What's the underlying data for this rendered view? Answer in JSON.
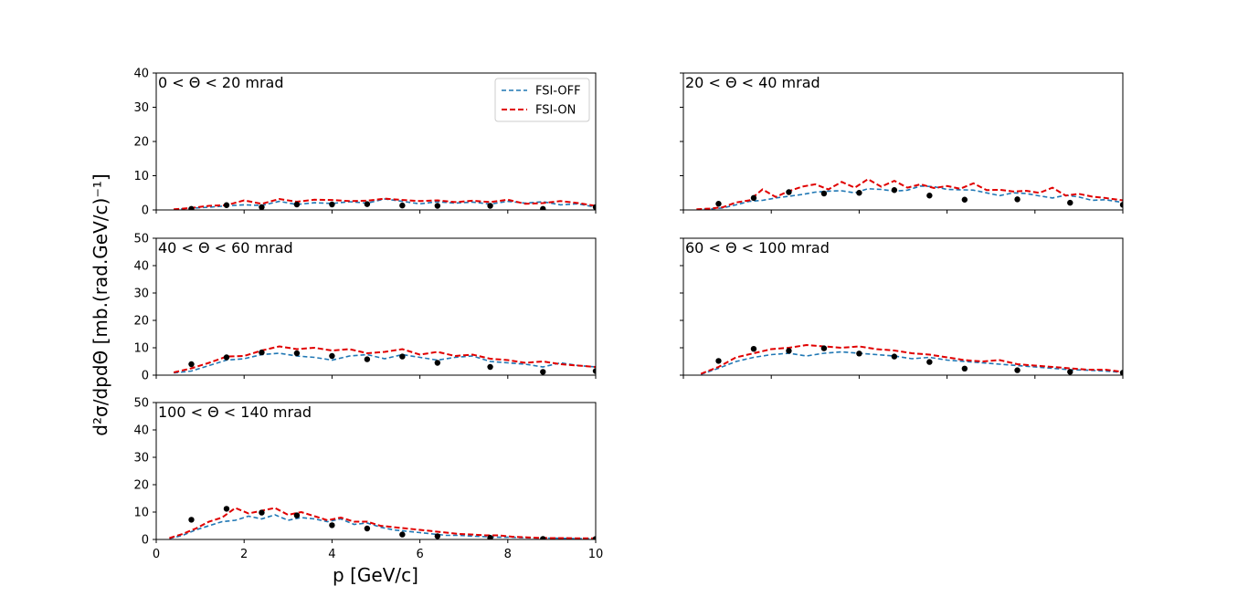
{
  "figure": {
    "ylabel": "d²σ/dpdΘ [mb.(rad.GeV/c)⁻¹]",
    "xlabel": "p [GeV/c]"
  },
  "colors": {
    "fsi_off": "#1f77b4",
    "fsi_on": "#e00000",
    "data": "#000000"
  },
  "legend": {
    "entries": [
      "FSI-OFF",
      "FSI-ON"
    ],
    "placement": "upper-right of first panel"
  },
  "chart_data": [
    {
      "type": "line",
      "title": "0 < Θ < 20 mrad",
      "xlim": [
        0,
        10
      ],
      "ylim": [
        0,
        40
      ],
      "yticks": [
        0,
        10,
        20,
        30,
        40
      ],
      "xticks": [
        0,
        2,
        4,
        6,
        8,
        10
      ],
      "series": [
        {
          "name": "FSI-OFF",
          "x": [
            0.4,
            0.8,
            1.2,
            1.6,
            2.0,
            2.4,
            2.8,
            3.2,
            3.6,
            4.0,
            4.4,
            4.8,
            5.2,
            5.6,
            6.0,
            6.4,
            6.8,
            7.2,
            7.6,
            8.0,
            8.4,
            8.8,
            9.2,
            9.6,
            10.0
          ],
          "values": [
            0.1,
            0.5,
            0.8,
            1.2,
            1.5,
            1.3,
            2.5,
            1.6,
            2.1,
            1.9,
            2.4,
            2.0,
            3.2,
            2.5,
            1.8,
            2.4,
            2.0,
            2.3,
            1.7,
            2.5,
            2.0,
            2.4,
            1.5,
            1.8,
            0.8
          ]
        },
        {
          "name": "FSI-ON",
          "x": [
            0.4,
            0.8,
            1.2,
            1.6,
            2.0,
            2.4,
            2.8,
            3.2,
            3.6,
            4.0,
            4.4,
            4.8,
            5.2,
            5.6,
            6.0,
            6.4,
            6.8,
            7.2,
            7.6,
            8.0,
            8.4,
            8.8,
            9.2,
            9.6,
            10.0
          ],
          "values": [
            0.2,
            0.6,
            1.2,
            1.4,
            2.8,
            1.8,
            3.2,
            2.4,
            3.0,
            2.9,
            2.6,
            2.7,
            3.3,
            2.9,
            2.6,
            2.8,
            2.3,
            2.7,
            2.3,
            3.0,
            1.8,
            2.0,
            2.6,
            2.0,
            1.2
          ]
        },
        {
          "name": "data",
          "type": "scatter",
          "x": [
            0.8,
            1.6,
            2.4,
            3.2,
            4.0,
            4.8,
            5.6,
            6.4,
            7.6,
            8.8,
            10.0
          ],
          "values": [
            0.3,
            1.4,
            0.8,
            1.6,
            1.6,
            1.7,
            1.3,
            1.2,
            1.2,
            0.3,
            0.8
          ]
        }
      ]
    },
    {
      "type": "line",
      "title": "20 < Θ < 40 mrad",
      "xlim": [
        0,
        10
      ],
      "ylim": [
        0,
        40
      ],
      "yticks": [
        0,
        10,
        20,
        30,
        40
      ],
      "series": [
        {
          "name": "FSI-OFF",
          "x": [
            0.3,
            0.6,
            0.9,
            1.2,
            1.5,
            1.8,
            2.1,
            2.4,
            2.7,
            3.0,
            3.3,
            3.6,
            3.9,
            4.2,
            4.5,
            4.8,
            5.1,
            5.4,
            5.7,
            6.0,
            6.3,
            6.6,
            6.9,
            7.2,
            7.5,
            7.8,
            8.1,
            8.4,
            8.7,
            9.0,
            9.3,
            9.6,
            10.0
          ],
          "values": [
            0.1,
            0.3,
            0.6,
            1.5,
            2.5,
            2.8,
            3.5,
            4.0,
            4.5,
            5.2,
            5.5,
            5.6,
            5.0,
            6.2,
            6.0,
            5.5,
            5.8,
            7.0,
            6.8,
            6.0,
            5.9,
            5.8,
            5.0,
            4.2,
            5.0,
            4.8,
            4.1,
            3.5,
            4.3,
            3.8,
            2.8,
            3.0,
            2.2
          ]
        },
        {
          "name": "FSI-ON",
          "x": [
            0.3,
            0.6,
            0.9,
            1.2,
            1.5,
            1.8,
            2.1,
            2.4,
            2.7,
            3.0,
            3.3,
            3.6,
            3.9,
            4.2,
            4.5,
            4.8,
            5.1,
            5.4,
            5.7,
            6.0,
            6.3,
            6.6,
            6.9,
            7.2,
            7.5,
            7.8,
            8.1,
            8.4,
            8.7,
            9.0,
            9.3,
            9.6,
            10.0
          ],
          "values": [
            0.2,
            0.4,
            0.8,
            2.2,
            2.8,
            6.0,
            3.8,
            5.5,
            6.8,
            7.5,
            6.0,
            8.2,
            6.5,
            9.0,
            6.8,
            8.5,
            6.5,
            7.5,
            6.4,
            7.0,
            6.2,
            7.8,
            5.8,
            5.9,
            5.4,
            5.6,
            5.0,
            6.5,
            4.2,
            4.7,
            3.9,
            3.5,
            2.8
          ]
        },
        {
          "name": "data",
          "type": "scatter",
          "x": [
            0.8,
            1.6,
            2.4,
            3.2,
            4.0,
            4.8,
            5.6,
            6.4,
            7.6,
            8.8,
            10.0
          ],
          "values": [
            1.8,
            3.5,
            5.2,
            4.8,
            5.0,
            5.8,
            4.2,
            3.0,
            3.1,
            2.1,
            1.5
          ]
        }
      ]
    },
    {
      "type": "line",
      "title": "40 < Θ < 60 mrad",
      "xlim": [
        0,
        10
      ],
      "ylim": [
        0,
        50
      ],
      "yticks": [
        0,
        10,
        20,
        30,
        40,
        50
      ],
      "series": [
        {
          "name": "FSI-OFF",
          "x": [
            0.4,
            0.8,
            1.2,
            1.6,
            2.0,
            2.4,
            2.8,
            3.2,
            3.6,
            4.0,
            4.4,
            4.8,
            5.2,
            5.6,
            6.0,
            6.4,
            6.8,
            7.2,
            7.6,
            8.0,
            8.4,
            8.8,
            9.2,
            9.6,
            10.0
          ],
          "values": [
            0.8,
            1.5,
            3.5,
            5.5,
            6.0,
            7.5,
            8.0,
            7.0,
            6.5,
            5.5,
            7.0,
            7.5,
            6.0,
            7.5,
            6.5,
            5.5,
            6.5,
            7.0,
            5.0,
            4.5,
            4.0,
            3.0,
            4.5,
            3.5,
            3.0
          ]
        },
        {
          "name": "FSI-ON",
          "x": [
            0.4,
            0.8,
            1.2,
            1.6,
            2.0,
            2.4,
            2.8,
            3.2,
            3.6,
            4.0,
            4.4,
            4.8,
            5.2,
            5.6,
            6.0,
            6.4,
            6.8,
            7.2,
            7.6,
            8.0,
            8.4,
            8.8,
            9.2,
            9.6,
            10.0
          ],
          "values": [
            1.0,
            2.5,
            4.5,
            6.8,
            7.0,
            9.0,
            10.5,
            9.5,
            10.0,
            9.0,
            9.5,
            8.0,
            8.5,
            9.5,
            7.5,
            8.5,
            7.0,
            7.5,
            6.0,
            5.5,
            4.5,
            5.0,
            4.0,
            3.5,
            3.0
          ]
        },
        {
          "name": "data",
          "type": "scatter",
          "x": [
            0.8,
            1.6,
            2.4,
            3.2,
            4.0,
            4.8,
            5.6,
            6.4,
            7.6,
            8.8,
            10.0
          ],
          "values": [
            4.0,
            6.5,
            8.3,
            8.0,
            7.0,
            5.8,
            6.8,
            4.5,
            3.0,
            1.2,
            1.5
          ]
        }
      ]
    },
    {
      "type": "line",
      "title": "60 < Θ < 100 mrad",
      "xlim": [
        0,
        10
      ],
      "ylim": [
        0,
        50
      ],
      "yticks": [
        0,
        10,
        20,
        30,
        40,
        50
      ],
      "series": [
        {
          "name": "FSI-OFF",
          "x": [
            0.4,
            0.8,
            1.2,
            1.6,
            2.0,
            2.4,
            2.8,
            3.2,
            3.6,
            4.0,
            4.4,
            4.8,
            5.2,
            5.6,
            6.0,
            6.4,
            6.8,
            7.2,
            7.6,
            8.0,
            8.4,
            8.8,
            9.2,
            9.6,
            10.0
          ],
          "values": [
            0.3,
            2.5,
            5.0,
            6.5,
            7.5,
            8.0,
            7.0,
            8.0,
            8.5,
            8.0,
            7.5,
            7.0,
            6.0,
            6.5,
            5.5,
            5.0,
            4.5,
            4.0,
            3.5,
            3.0,
            2.5,
            2.0,
            1.8,
            1.5,
            1.0
          ]
        },
        {
          "name": "FSI-ON",
          "x": [
            0.4,
            0.8,
            1.2,
            1.6,
            2.0,
            2.4,
            2.8,
            3.2,
            3.6,
            4.0,
            4.4,
            4.8,
            5.2,
            5.6,
            6.0,
            6.4,
            6.8,
            7.2,
            7.6,
            8.0,
            8.4,
            8.8,
            9.2,
            9.6,
            10.0
          ],
          "values": [
            0.5,
            3.0,
            6.5,
            8.0,
            9.5,
            10.0,
            11.0,
            10.5,
            10.0,
            10.5,
            9.5,
            9.0,
            8.0,
            7.5,
            6.5,
            5.5,
            5.0,
            5.5,
            4.0,
            3.5,
            3.0,
            2.5,
            2.0,
            2.0,
            1.2
          ]
        },
        {
          "name": "data",
          "type": "scatter",
          "x": [
            0.8,
            1.6,
            2.4,
            3.2,
            4.0,
            4.8,
            5.6,
            6.4,
            7.6,
            8.8,
            10.0
          ],
          "values": [
            5.2,
            9.6,
            8.9,
            9.8,
            7.9,
            6.8,
            4.8,
            2.4,
            1.8,
            1.2,
            0.9
          ]
        }
      ]
    },
    {
      "type": "line",
      "title": "100 < Θ < 140 mrad",
      "xlim": [
        0,
        10
      ],
      "ylim": [
        0,
        50
      ],
      "yticks": [
        0,
        10,
        20,
        30,
        40,
        50
      ],
      "xticks": [
        0,
        2,
        4,
        6,
        8,
        10
      ],
      "series": [
        {
          "name": "FSI-OFF",
          "x": [
            0.3,
            0.6,
            0.9,
            1.2,
            1.5,
            1.8,
            2.1,
            2.4,
            2.7,
            3.0,
            3.3,
            3.6,
            3.9,
            4.2,
            4.5,
            4.8,
            5.1,
            5.4,
            5.7,
            6.0,
            6.3,
            6.6,
            6.9,
            7.2,
            7.5,
            7.8,
            8.1,
            8.4,
            8.7,
            9.0,
            9.3,
            9.6,
            10.0
          ],
          "values": [
            0.3,
            1.5,
            3.5,
            5.0,
            6.5,
            7.0,
            8.5,
            7.5,
            9.0,
            7.0,
            8.0,
            7.5,
            6.5,
            7.5,
            5.5,
            6.0,
            4.5,
            3.5,
            3.0,
            2.5,
            2.0,
            1.5,
            1.5,
            1.2,
            1.0,
            0.8,
            0.8,
            0.6,
            0.5,
            0.5,
            0.4,
            0.3,
            0.3
          ]
        },
        {
          "name": "FSI-ON",
          "x": [
            0.3,
            0.6,
            0.9,
            1.2,
            1.5,
            1.8,
            2.1,
            2.4,
            2.7,
            3.0,
            3.3,
            3.6,
            3.9,
            4.2,
            4.5,
            4.8,
            5.1,
            5.4,
            5.7,
            6.0,
            6.3,
            6.6,
            6.9,
            7.2,
            7.5,
            7.8,
            8.1,
            8.4,
            8.7,
            9.0,
            9.3,
            9.6,
            10.0
          ],
          "values": [
            0.5,
            2.0,
            4.0,
            6.5,
            8.0,
            11.5,
            9.5,
            10.5,
            11.5,
            9.0,
            10.0,
            8.5,
            7.0,
            8.0,
            6.5,
            6.5,
            5.0,
            4.5,
            4.0,
            3.5,
            3.0,
            2.5,
            2.0,
            1.8,
            1.5,
            1.5,
            1.0,
            0.8,
            0.6,
            0.5,
            0.5,
            0.4,
            0.4
          ]
        },
        {
          "name": "data",
          "type": "scatter",
          "x": [
            0.8,
            1.6,
            2.4,
            3.2,
            4.0,
            4.8,
            5.6,
            6.4,
            7.6,
            8.8,
            10.0
          ],
          "values": [
            7.2,
            11.2,
            9.8,
            8.8,
            5.2,
            4.0,
            1.8,
            1.2,
            0.6,
            0.2,
            0.2
          ]
        }
      ]
    }
  ]
}
